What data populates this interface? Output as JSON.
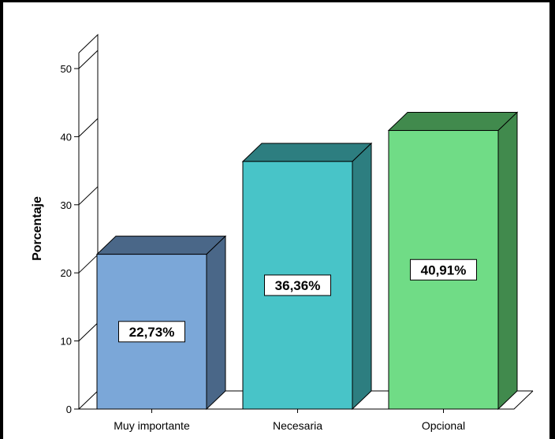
{
  "chart_data": {
    "type": "bar",
    "style": "3d",
    "ylabel": "Porcentaje",
    "xlabel": "",
    "ylim": [
      0,
      50
    ],
    "yticks": [
      0,
      10,
      20,
      30,
      40,
      50
    ],
    "categories": [
      "Muy importante",
      "Necesaria",
      "Opcional"
    ],
    "values": [
      22.73,
      36.36,
      40.91
    ],
    "data_labels": [
      "22,73%",
      "36,36%",
      "40,91%"
    ],
    "colors": [
      {
        "front": "#7BA7D8",
        "top": "#4A6788",
        "side": "#4A6788"
      },
      {
        "front": "#48C4C8",
        "top": "#2D7E80",
        "side": "#2D7E80"
      },
      {
        "front": "#70DC86",
        "top": "#418A4D",
        "side": "#418A4D"
      }
    ],
    "grid": false,
    "legend": "none"
  }
}
